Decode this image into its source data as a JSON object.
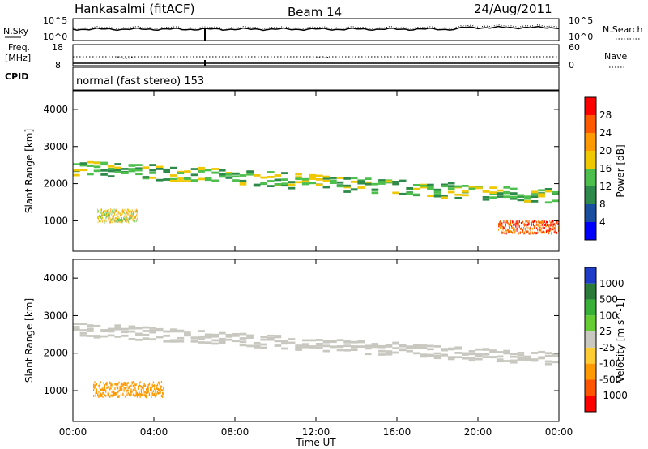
{
  "header": {
    "title": "Hankasalmi (fitACF)",
    "beam": "Beam 14",
    "date": "24/Aug/2011"
  },
  "strip_panels": {
    "nsky_label": "N.Sky",
    "nsearch_label": "N.Search",
    "freq_label_line1": "Freq.",
    "freq_label_line2": "[MHz]",
    "nave_label": "Nave",
    "cpid_label": "CPID",
    "cpid_text": "normal (fast stereo) 153",
    "nsky_ticks": [
      "10^5",
      "10^0"
    ],
    "nsearch_ticks": [
      "10^5",
      "10^0"
    ],
    "freq_ticks": [
      "18",
      "8"
    ],
    "nave_ticks": [
      "60",
      "0"
    ]
  },
  "chart_data": [
    {
      "type": "heatmap",
      "title": "Power",
      "ylabel": "Slant Range [km]",
      "xlabel": "Time UT",
      "colorbar_label": "Power [dB]",
      "ylim": [
        180,
        4500
      ],
      "xlim": [
        "00:00",
        "24:00"
      ],
      "x_ticks": [
        "00:00",
        "04:00",
        "08:00",
        "12:00",
        "16:00",
        "20:00",
        "00:00"
      ],
      "y_ticks": [
        1000,
        2000,
        3000,
        4000
      ],
      "colorbar_ticks": [
        4,
        8,
        12,
        16,
        20,
        24,
        28
      ],
      "colorbar_range": [
        0,
        32
      ],
      "colors": [
        "#0000ff",
        "#1a4fa0",
        "#2e8a4a",
        "#4cbf4c",
        "#f0c800",
        "#ff9900",
        "#ff5a00",
        "#ff0000"
      ],
      "features": [
        {
          "name": "main-band",
          "t_start": 0.0,
          "t_end": 24.0,
          "range_start_km": 2400,
          "range_end_km": 1600,
          "power_db": 14
        },
        {
          "name": "near-range-echo",
          "t_start": 21.0,
          "t_end": 24.0,
          "range_km": 800,
          "power_db": 26
        },
        {
          "name": "early-patch",
          "t_start": 1.2,
          "t_end": 3.2,
          "range_km": 1100,
          "power_db": 18
        }
      ]
    },
    {
      "type": "heatmap",
      "title": "Velocity",
      "ylabel": "Slant Range [km]",
      "xlabel": "Time UT",
      "colorbar_label": "Velocity [m s^-1]",
      "ylim": [
        180,
        4500
      ],
      "xlim": [
        "00:00",
        "24:00"
      ],
      "x_ticks": [
        "00:00",
        "04:00",
        "08:00",
        "12:00",
        "16:00",
        "20:00",
        "00:00"
      ],
      "y_ticks": [
        1000,
        2000,
        3000,
        4000
      ],
      "colorbar_ticks": [
        "1000",
        "500",
        "100",
        "25",
        "-25",
        "-100",
        "-500",
        "-1000"
      ],
      "colors": [
        "#1e3cc8",
        "#2a7a3a",
        "#38b038",
        "#66cc33",
        "#c8c8c0",
        "#ffcc33",
        "#ff9900",
        "#ff5500",
        "#ff0000"
      ],
      "features": [
        {
          "name": "ground-scatter-band",
          "t_start": 0.0,
          "t_end": 24.0,
          "range_start_km": 2600,
          "range_end_km": 1800,
          "velocity": 0
        },
        {
          "name": "early-orange-patch",
          "t_start": 1.0,
          "t_end": 4.5,
          "range_km": 1000,
          "velocity": -300
        }
      ]
    }
  ]
}
